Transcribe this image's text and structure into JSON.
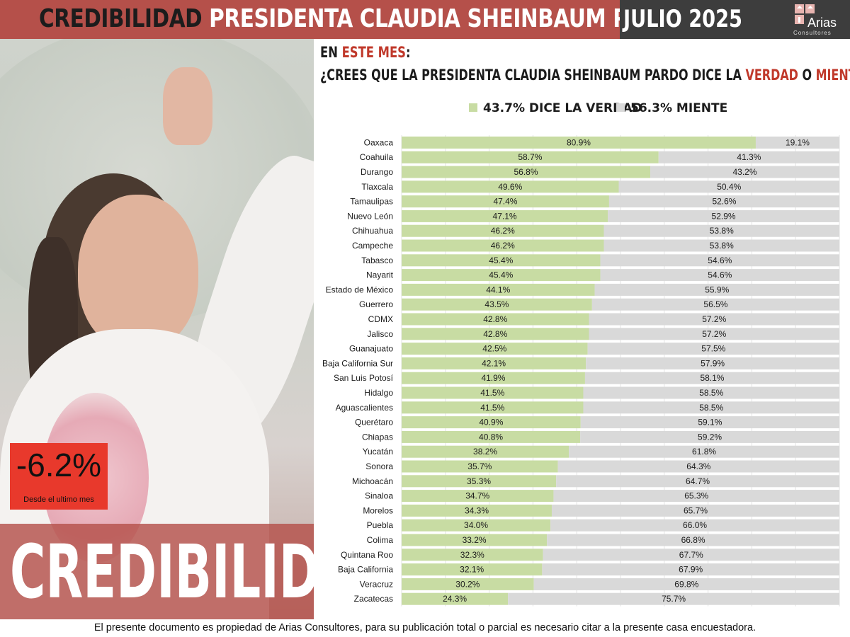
{
  "header": {
    "title_part1": "CREDIBILIDAD",
    "title_part2": "PRESIDENTA CLAUDIA SHEINBAUM PARDO",
    "month": "JULIO 2025",
    "logo_name": "Arias",
    "logo_sub": "Consultores",
    "logo_icon": "arias-logo-icon"
  },
  "colors": {
    "header_red": "#b5504a",
    "header_dark": "#3d3d3d",
    "verdad": "#c8dca3",
    "miente": "#d9d9d9",
    "accent_red": "#c0392b",
    "badge_red": "#e8392c"
  },
  "question": {
    "line1_prefix": "EN",
    "line1_highlight": "ESTE MES",
    "line1_suffix": ":",
    "line2_prefix": "¿CREES QUE LA PRESIDENTA CLAUDIA SHEINBAUM PARDO DICE LA",
    "line2_highlight1": "VERDAD",
    "line2_mid": "O",
    "line2_highlight2": "MIENTE",
    "line2_suffix": ":"
  },
  "legend": {
    "verdad": "43.7% DICE LA VERDAD",
    "miente": "56.3% MIENTE"
  },
  "badge": {
    "value": "-6.2%",
    "subtitle": "Desde el ultimo mes"
  },
  "panel_word": "CREDIBILIDAD",
  "chart_data": {
    "type": "bar",
    "orientation": "horizontal",
    "stacked": true,
    "xlim": [
      0,
      100
    ],
    "grid": true,
    "categories": [
      "Oaxaca",
      "Coahuila",
      "Durango",
      "Tlaxcala",
      "Tamaulipas",
      "Nuevo León",
      "Chihuahua",
      "Campeche",
      "Tabasco",
      "Nayarit",
      "Estado de México",
      "Guerrero",
      "CDMX",
      "Jalisco",
      "Guanajuato",
      "Baja California Sur",
      "San Luis Potosí",
      "Hidalgo",
      "Aguascalientes",
      "Querétaro",
      "Chiapas",
      "Yucatán",
      "Sonora",
      "Michoacán",
      "Sinaloa",
      "Morelos",
      "Puebla",
      "Colima",
      "Quintana Roo",
      "Baja California",
      "Veracruz",
      "Zacatecas"
    ],
    "series": [
      {
        "name": "43.7% DICE LA VERDAD",
        "color": "#c8dca3",
        "values": [
          80.9,
          58.7,
          56.8,
          49.6,
          47.4,
          47.1,
          46.2,
          46.2,
          45.4,
          45.4,
          44.1,
          43.5,
          42.8,
          42.8,
          42.5,
          42.1,
          41.9,
          41.5,
          41.5,
          40.9,
          40.8,
          38.2,
          35.7,
          35.3,
          34.7,
          34.3,
          34.0,
          33.2,
          32.3,
          32.1,
          30.2,
          24.3
        ],
        "labels": [
          "80.9%",
          "58.7%",
          "56.8%",
          "49.6%",
          "47.4%",
          "47.1%",
          "46.2%",
          "46.2%",
          "45.4%",
          "45.4%",
          "44.1%",
          "43.5%",
          "42.8%",
          "42.8%",
          "42.5%",
          "42.1%",
          "41.9%",
          "41.5%",
          "41.5%",
          "40.9%",
          "40.8%",
          "38.2%",
          "35.7%",
          "35.3%",
          "34.7%",
          "34.3%",
          "34.0%",
          "33.2%",
          "32.3%",
          "32.1%",
          "30.2%",
          "24.3%"
        ]
      },
      {
        "name": "56.3% MIENTE",
        "color": "#d9d9d9",
        "values": [
          19.1,
          41.3,
          43.2,
          50.4,
          52.6,
          52.9,
          53.8,
          53.8,
          54.6,
          54.6,
          55.9,
          56.5,
          57.2,
          57.2,
          57.5,
          57.9,
          58.1,
          58.5,
          58.5,
          59.1,
          59.2,
          61.8,
          64.3,
          64.7,
          65.3,
          65.7,
          66.0,
          66.8,
          67.7,
          67.9,
          69.8,
          75.7
        ],
        "labels": [
          "19.1%",
          "41.3%",
          "43.2%",
          "50.4%",
          "52.6%",
          "52.9%",
          "53.8%",
          "53.8%",
          "54.6%",
          "54.6%",
          "55.9%",
          "56.5%",
          "57.2%",
          "57.2%",
          "57.5%",
          "57.9%",
          "58.1%",
          "58.5%",
          "58.5%",
          "59.1%",
          "59.2%",
          "61.8%",
          "64.3%",
          "64.7%",
          "65.3%",
          "65.7%",
          "66.0%",
          "66.8%",
          "67.7%",
          "67.9%",
          "69.8%",
          "75.7%"
        ]
      }
    ]
  },
  "footer": "El presente documento es propiedad de Arias Consultores, para su publicación total o parcial es necesario citar a la presente casa encuestadora."
}
